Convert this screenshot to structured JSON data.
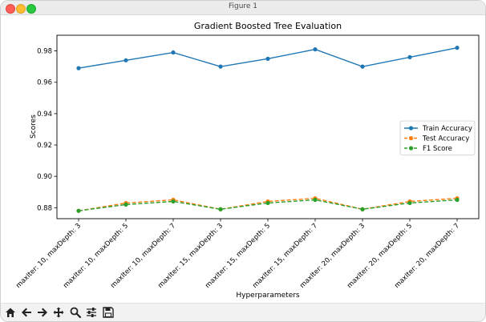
{
  "window": {
    "title": "Figure 1"
  },
  "toolbar": {
    "buttons": [
      {
        "name": "home-icon",
        "tooltip": "Reset original view"
      },
      {
        "name": "back-icon",
        "tooltip": "Back to previous view"
      },
      {
        "name": "forward-icon",
        "tooltip": "Forward to next view"
      },
      {
        "name": "pan-icon",
        "tooltip": "Pan axes"
      },
      {
        "name": "zoom-icon",
        "tooltip": "Zoom to rectangle"
      },
      {
        "name": "configure-icon",
        "tooltip": "Configure subplots"
      },
      {
        "name": "save-icon",
        "tooltip": "Save the figure"
      }
    ]
  },
  "chart_data": {
    "type": "line",
    "title": "Gradient Boosted Tree Evaluation",
    "xlabel": "Hyperparameters",
    "ylabel": "Scores",
    "categories": [
      "maxIter: 10, maxDepth: 3",
      "maxIter: 10, maxDepth: 5",
      "maxIter: 10, maxDepth: 7",
      "maxIter: 15, maxDepth: 3",
      "maxIter: 15, maxDepth: 5",
      "maxIter: 15, maxDepth: 7",
      "maxIter: 20, maxDepth: 3",
      "maxIter: 20, maxDepth: 5",
      "maxIter: 20, maxDepth: 7"
    ],
    "ylim": [
      0.873,
      0.99
    ],
    "yticks": [
      0.88,
      0.9,
      0.92,
      0.94,
      0.96,
      0.98
    ],
    "ytick_labels": [
      "0.88",
      "0.90",
      "0.92",
      "0.94",
      "0.96",
      "0.98"
    ],
    "grid": false,
    "legend_position": "center-right",
    "series": [
      {
        "name": "Train Accuracy",
        "color": "#1f77b4",
        "linestyle": "solid",
        "marker": "circle",
        "values": [
          0.969,
          0.974,
          0.979,
          0.97,
          0.975,
          0.981,
          0.97,
          0.976,
          0.982
        ]
      },
      {
        "name": "Test Accuracy",
        "color": "#ff7f0e",
        "linestyle": "dashed",
        "marker": "circle",
        "values": [
          0.878,
          0.883,
          0.885,
          0.879,
          0.884,
          0.886,
          0.879,
          0.884,
          0.886
        ]
      },
      {
        "name": "F1 Score",
        "color": "#2ca02c",
        "linestyle": "dashed",
        "marker": "circle",
        "values": [
          0.878,
          0.882,
          0.884,
          0.879,
          0.883,
          0.885,
          0.879,
          0.883,
          0.885
        ]
      }
    ]
  }
}
